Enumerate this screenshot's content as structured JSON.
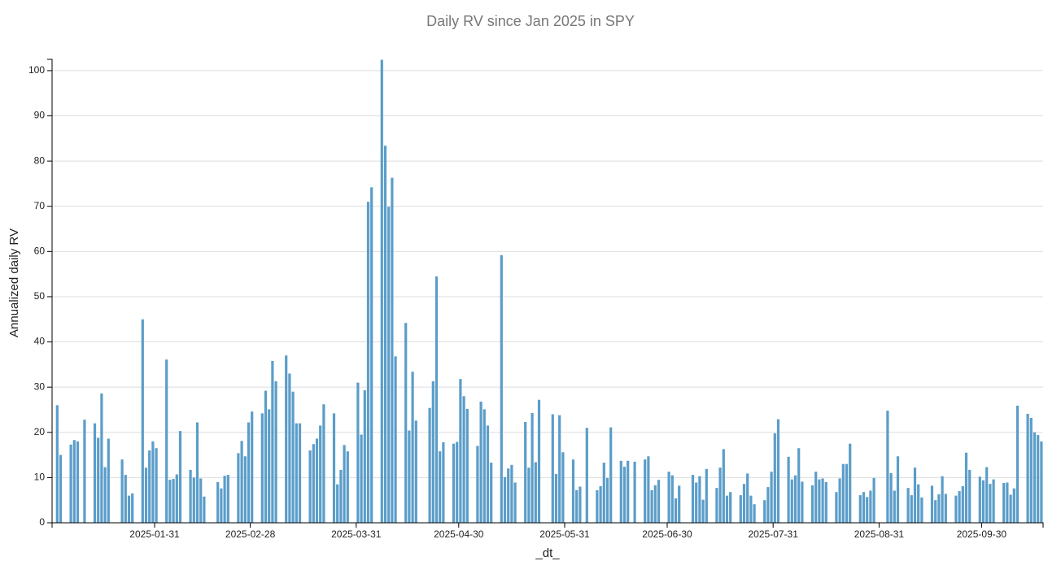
{
  "chart_data": {
    "type": "bar",
    "title": "Daily RV since Jan 2025 in SPY",
    "x_label": "_dt_",
    "y_label": "Annualized daily RV",
    "color": "#5b9dc9",
    "grid": true,
    "xlim": [
      "2025-01-01",
      "2025-10-18"
    ],
    "xticks": [
      "2025-01-31",
      "2025-02-28",
      "2025-03-31",
      "2025-04-30",
      "2025-05-31",
      "2025-06-30",
      "2025-07-31",
      "2025-08-31",
      "2025-09-30"
    ],
    "ylim": [
      0,
      102.5
    ],
    "yticks": [
      0,
      10,
      20,
      30,
      40,
      50,
      60,
      70,
      80,
      90,
      100
    ],
    "x": [
      "2025-01-02",
      "2025-01-03",
      "2025-01-06",
      "2025-01-07",
      "2025-01-08",
      "2025-01-10",
      "2025-01-13",
      "2025-01-14",
      "2025-01-15",
      "2025-01-16",
      "2025-01-17",
      "2025-01-21",
      "2025-01-22",
      "2025-01-23",
      "2025-01-24",
      "2025-01-27",
      "2025-01-28",
      "2025-01-29",
      "2025-01-30",
      "2025-01-31",
      "2025-02-03",
      "2025-02-04",
      "2025-02-05",
      "2025-02-06",
      "2025-02-07",
      "2025-02-10",
      "2025-02-11",
      "2025-02-12",
      "2025-02-13",
      "2025-02-14",
      "2025-02-18",
      "2025-02-19",
      "2025-02-20",
      "2025-02-21",
      "2025-02-24",
      "2025-02-25",
      "2025-02-26",
      "2025-02-27",
      "2025-02-28",
      "2025-03-03",
      "2025-03-04",
      "2025-03-05",
      "2025-03-06",
      "2025-03-07",
      "2025-03-10",
      "2025-03-11",
      "2025-03-12",
      "2025-03-13",
      "2025-03-14",
      "2025-03-17",
      "2025-03-18",
      "2025-03-19",
      "2025-03-20",
      "2025-03-21",
      "2025-03-24",
      "2025-03-25",
      "2025-03-26",
      "2025-03-27",
      "2025-03-28",
      "2025-03-31",
      "2025-04-01",
      "2025-04-02",
      "2025-04-03",
      "2025-04-04",
      "2025-04-07",
      "2025-04-08",
      "2025-04-09",
      "2025-04-10",
      "2025-04-11",
      "2025-04-14",
      "2025-04-15",
      "2025-04-16",
      "2025-04-17",
      "2025-04-21",
      "2025-04-22",
      "2025-04-23",
      "2025-04-24",
      "2025-04-25",
      "2025-04-28",
      "2025-04-29",
      "2025-04-30",
      "2025-05-01",
      "2025-05-02",
      "2025-05-05",
      "2025-05-06",
      "2025-05-07",
      "2025-05-08",
      "2025-05-09",
      "2025-05-12",
      "2025-05-13",
      "2025-05-14",
      "2025-05-15",
      "2025-05-16",
      "2025-05-19",
      "2025-05-20",
      "2025-05-21",
      "2025-05-22",
      "2025-05-23",
      "2025-05-27",
      "2025-05-28",
      "2025-05-29",
      "2025-05-30",
      "2025-06-02",
      "2025-06-03",
      "2025-06-04",
      "2025-06-06",
      "2025-06-09",
      "2025-06-10",
      "2025-06-11",
      "2025-06-12",
      "2025-06-13",
      "2025-06-16",
      "2025-06-17",
      "2025-06-18",
      "2025-06-20",
      "2025-06-23",
      "2025-06-24",
      "2025-06-25",
      "2025-06-26",
      "2025-06-27",
      "2025-06-30",
      "2025-07-01",
      "2025-07-02",
      "2025-07-03",
      "2025-07-07",
      "2025-07-08",
      "2025-07-09",
      "2025-07-10",
      "2025-07-11",
      "2025-07-14",
      "2025-07-15",
      "2025-07-16",
      "2025-07-17",
      "2025-07-18",
      "2025-07-21",
      "2025-07-22",
      "2025-07-23",
      "2025-07-24",
      "2025-07-25",
      "2025-07-28",
      "2025-07-29",
      "2025-07-30",
      "2025-07-31",
      "2025-08-01",
      "2025-08-04",
      "2025-08-05",
      "2025-08-06",
      "2025-08-07",
      "2025-08-08",
      "2025-08-11",
      "2025-08-12",
      "2025-08-13",
      "2025-08-14",
      "2025-08-15",
      "2025-08-18",
      "2025-08-19",
      "2025-08-20",
      "2025-08-21",
      "2025-08-22",
      "2025-08-25",
      "2025-08-26",
      "2025-08-27",
      "2025-08-28",
      "2025-08-29",
      "2025-09-02",
      "2025-09-03",
      "2025-09-04",
      "2025-09-05",
      "2025-09-08",
      "2025-09-09",
      "2025-09-10",
      "2025-09-11",
      "2025-09-12",
      "2025-09-15",
      "2025-09-16",
      "2025-09-17",
      "2025-09-18",
      "2025-09-19",
      "2025-09-22",
      "2025-09-23",
      "2025-09-24",
      "2025-09-25",
      "2025-09-26",
      "2025-09-29",
      "2025-09-30",
      "2025-10-01",
      "2025-10-02",
      "2025-10-03",
      "2025-10-06",
      "2025-10-07",
      "2025-10-08",
      "2025-10-09",
      "2025-10-10",
      "2025-10-13",
      "2025-10-14",
      "2025-10-15",
      "2025-10-16",
      "2025-10-17"
    ],
    "values": [
      26,
      15,
      17.3,
      18.3,
      18,
      22.8,
      22,
      18.8,
      28.6,
      12.3,
      18.6,
      14,
      10.6,
      6,
      6.5,
      45,
      12.2,
      16,
      18,
      16.5,
      36.1,
      9.5,
      9.7,
      10.7,
      20.3,
      11.7,
      10,
      22.2,
      9.8,
      5.8,
      9,
      7.6,
      10.4,
      10.6,
      15.4,
      18.1,
      14.7,
      22.2,
      24.6,
      24.2,
      29.2,
      25.1,
      35.8,
      31.3,
      37,
      33,
      29,
      22,
      22,
      16,
      17.4,
      18.6,
      21.5,
      26.2,
      24.2,
      8.5,
      11.7,
      17.2,
      15.8,
      31,
      19.5,
      29.3,
      71,
      74.2,
      102.4,
      83.4,
      69.9,
      76.3,
      36.8,
      44.2,
      20.4,
      33.4,
      22.6,
      25.4,
      31.3,
      54.5,
      15.8,
      17.8,
      17.5,
      17.9,
      31.8,
      28,
      25.2,
      17,
      26.8,
      25.1,
      21.5,
      13.3,
      59.2,
      10.1,
      12,
      12.8,
      8.9,
      22.3,
      12.2,
      24.3,
      13.4,
      27.2,
      24,
      10.8,
      23.8,
      15.6,
      14,
      7.2,
      8,
      21,
      7.2,
      8.1,
      13.3,
      9.9,
      21.1,
      13.7,
      12.4,
      13.7,
      13.5,
      14,
      14.7,
      7.2,
      8.3,
      9.5,
      11.3,
      10.5,
      5.4,
      8.2,
      10.6,
      8.9,
      10.3,
      5.1,
      11.9,
      7.7,
      12.2,
      16.3,
      6,
      6.8,
      6.1,
      8.6,
      10.9,
      6,
      4.1,
      5,
      7.9,
      11.3,
      19.8,
      22.9,
      14.6,
      9.6,
      10.5,
      16.5,
      9.1,
      8.3,
      11.3,
      9.6,
      9.8,
      9,
      6.8,
      9.8,
      13,
      13,
      17.5,
      6.1,
      6.8,
      5.7,
      7.1,
      9.9,
      24.8,
      11,
      7.1,
      14.7,
      7.7,
      6.1,
      12.2,
      8.5,
      5.6,
      8.2,
      5,
      6.3,
      10.3,
      6.4,
      6,
      7,
      8.1,
      15.5,
      11.7,
      10.2,
      9.4,
      12.3,
      8.6,
      9.6,
      8.8,
      8.9,
      6.2,
      7.6,
      25.9,
      24.1,
      23.2,
      20,
      19.4,
      18
    ]
  }
}
